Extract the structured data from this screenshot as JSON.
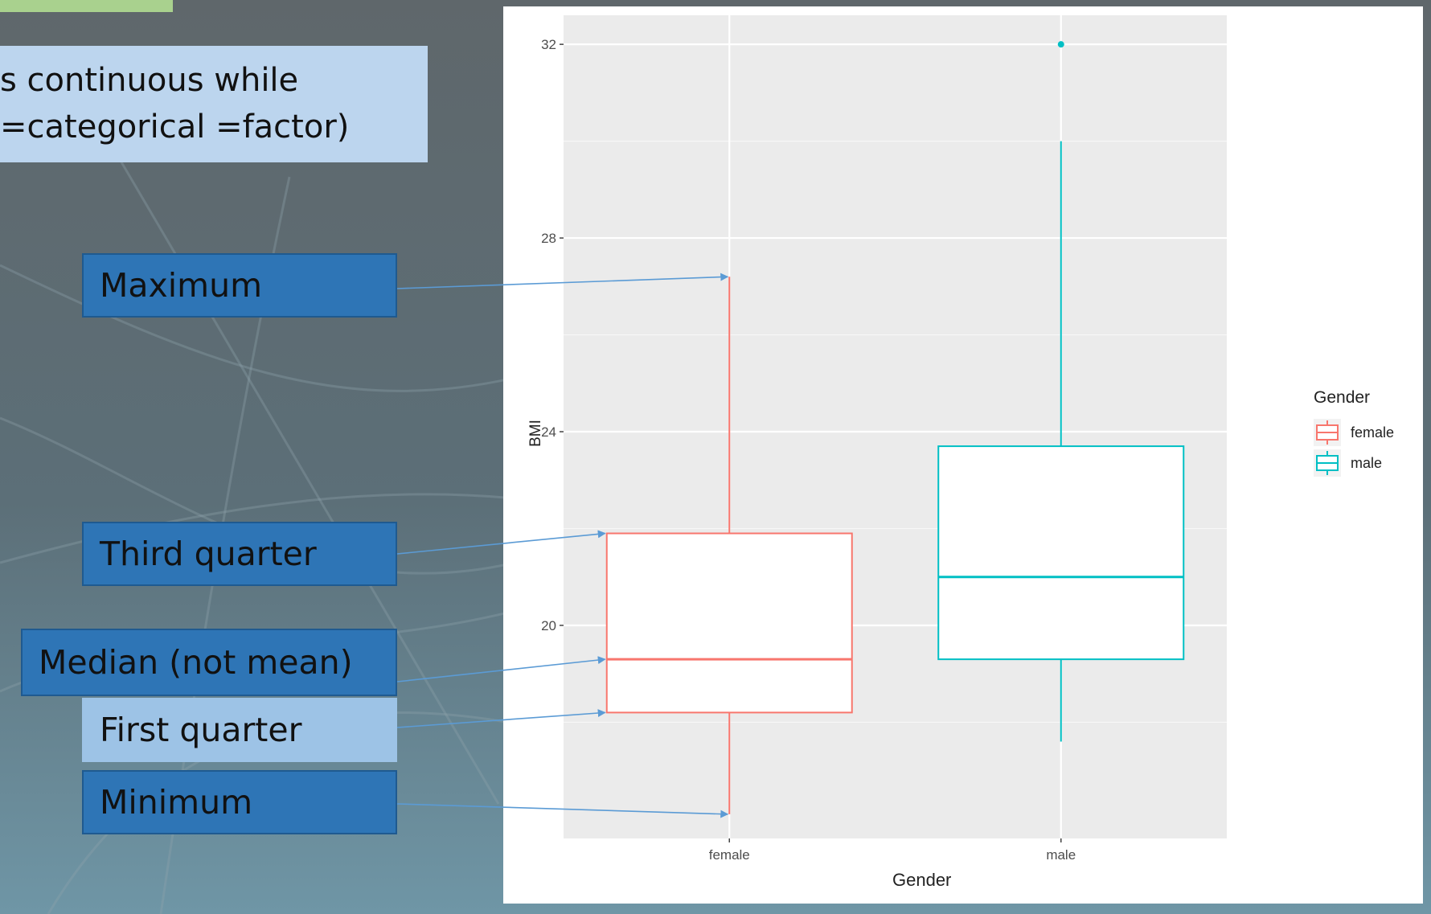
{
  "slide": {
    "title_line1": "s continuous while",
    "title_line2": "=categorical =factor)",
    "callouts": {
      "maximum": "Maximum",
      "third_quarter": "Third quarter",
      "median": "Median (not mean)",
      "first_quarter": "First quarter",
      "minimum": "Minimum"
    }
  },
  "colors": {
    "female": "#f8766d",
    "male": "#00bfc4",
    "callout_dark": "#2e75b6",
    "callout_light": "#9dc3e6",
    "arrow": "#5b9bd5"
  },
  "chart_data": {
    "type": "boxplot",
    "xlabel": "Gender",
    "ylabel": "BMI",
    "categories": [
      "female",
      "male"
    ],
    "ylim": [
      15.6,
      32.6
    ],
    "yticks": [
      20,
      24,
      28,
      32
    ],
    "series": [
      {
        "name": "female",
        "min": 16.1,
        "q1": 18.2,
        "median": 19.3,
        "q3": 21.9,
        "max": 27.2,
        "outliers": []
      },
      {
        "name": "male",
        "min": 17.6,
        "q1": 19.3,
        "median": 21.0,
        "q3": 23.7,
        "max": 30.0,
        "outliers": [
          32.0
        ]
      }
    ],
    "legend": {
      "title": "Gender",
      "position": "right",
      "entries": [
        "female",
        "male"
      ]
    },
    "grid": true
  }
}
